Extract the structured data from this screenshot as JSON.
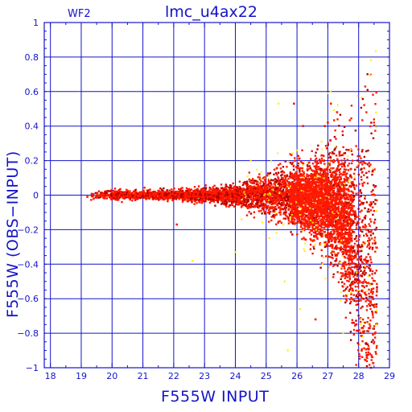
{
  "chart_data": {
    "type": "scatter",
    "title": "lmc_u4ax22",
    "subtitle": "WF2",
    "xlabel": "F555W INPUT",
    "ylabel": "F555W (OBS−INPUT)",
    "xlim": [
      17.8,
      29
    ],
    "ylim": [
      -1,
      1
    ],
    "xticks": [
      "18",
      "19",
      "20",
      "21",
      "22",
      "23",
      "24",
      "25",
      "26",
      "27",
      "28",
      "29"
    ],
    "yticks": [
      "1",
      "0.8",
      "0.6",
      "0.4",
      "0.2",
      "0",
      "−0.2",
      "−0.4",
      "−0.6",
      "−0.8",
      "−1"
    ],
    "grid": true,
    "colors": {
      "axis": "#1414c8",
      "main_points": "#ff1a00",
      "dark_points": "#b30000",
      "yellow_points": "#ffee00"
    },
    "series": [
      {
        "color": "red",
        "description_of_envelope": [
          {
            "x": 19.3,
            "y_spread": 0.02
          },
          {
            "x": 22.0,
            "y_spread": 0.025
          },
          {
            "x": 24.0,
            "y_spread": 0.05
          },
          {
            "x": 25.5,
            "y_spread": 0.12
          },
          {
            "x": 26.5,
            "y_spread": 0.2
          },
          {
            "x": 27.2,
            "y_spread": 0.3
          },
          {
            "x": 27.8,
            "y_spread": 0.5
          },
          {
            "x": 28.5,
            "y_spread": 0.9
          }
        ],
        "values": [
          {
            "x": 19.2,
            "y": -0.01
          },
          {
            "x": 22.1,
            "y": -0.17
          },
          {
            "x": 25.9,
            "y": 0.53
          },
          {
            "x": 27.1,
            "y": 0.53
          },
          {
            "x": 26.2,
            "y": 0.4
          },
          {
            "x": 26.9,
            "y": 0.4
          },
          {
            "x": 27.0,
            "y": 0.42
          },
          {
            "x": 27.3,
            "y": 0.48
          },
          {
            "x": 28.4,
            "y": -1.0
          },
          {
            "x": 28.1,
            "y": -0.9
          },
          {
            "x": 27.9,
            "y": -0.75
          },
          {
            "x": 26.6,
            "y": -0.72
          }
        ]
      },
      {
        "color": "yellow",
        "values": [
          {
            "x": 24.5,
            "y": 0.2
          },
          {
            "x": 25.4,
            "y": 0.53
          },
          {
            "x": 24.2,
            "y": -0.14
          },
          {
            "x": 25.1,
            "y": -0.25
          },
          {
            "x": 24.0,
            "y": -0.33
          },
          {
            "x": 25.6,
            "y": -0.5
          },
          {
            "x": 22.6,
            "y": -0.38
          },
          {
            "x": 25.7,
            "y": -0.9
          },
          {
            "x": 26.1,
            "y": -0.66
          },
          {
            "x": 26.8,
            "y": 0.31
          },
          {
            "x": 27.5,
            "y": -0.8
          },
          {
            "x": 28.0,
            "y": -0.55
          }
        ]
      }
    ]
  }
}
